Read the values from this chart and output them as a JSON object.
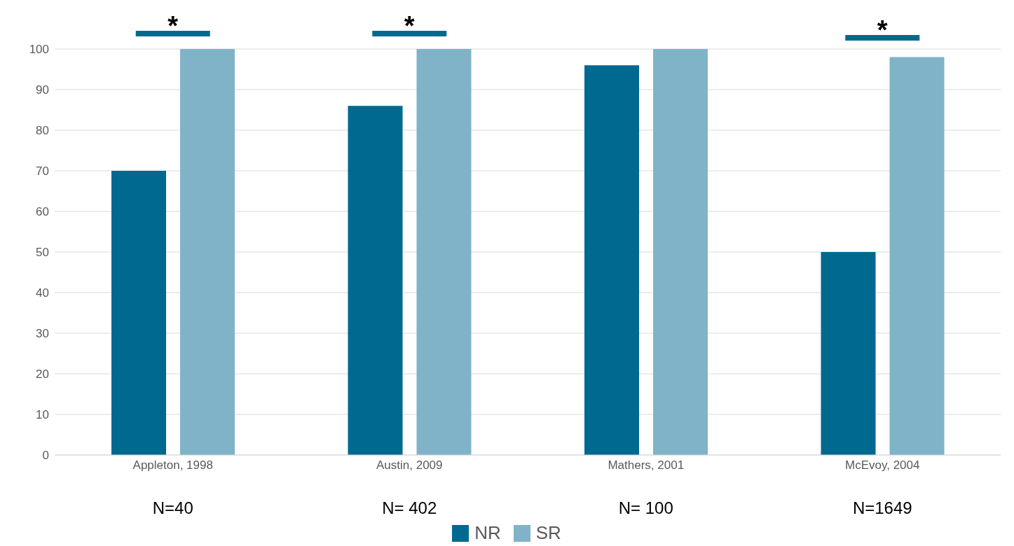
{
  "chart_data": {
    "type": "bar",
    "categories": [
      "Appleton, 1998",
      "Austin, 2009",
      "Mathers, 2001",
      "McEvoy, 2004"
    ],
    "series": [
      {
        "name": "NR",
        "color": "#006990",
        "values": [
          70,
          86,
          96,
          50
        ]
      },
      {
        "name": "SR",
        "color": "#80b3c8",
        "values": [
          100,
          100,
          100,
          98
        ]
      }
    ],
    "ylim": [
      0,
      100
    ],
    "yticks": [
      0,
      10,
      20,
      30,
      40,
      50,
      60,
      70,
      80,
      90,
      100
    ],
    "grid": "y",
    "legend": "bottom",
    "annotations": [
      "*",
      "*",
      "*",
      "N=40",
      "N= 402",
      "N= 100",
      "N=1649"
    ]
  }
}
